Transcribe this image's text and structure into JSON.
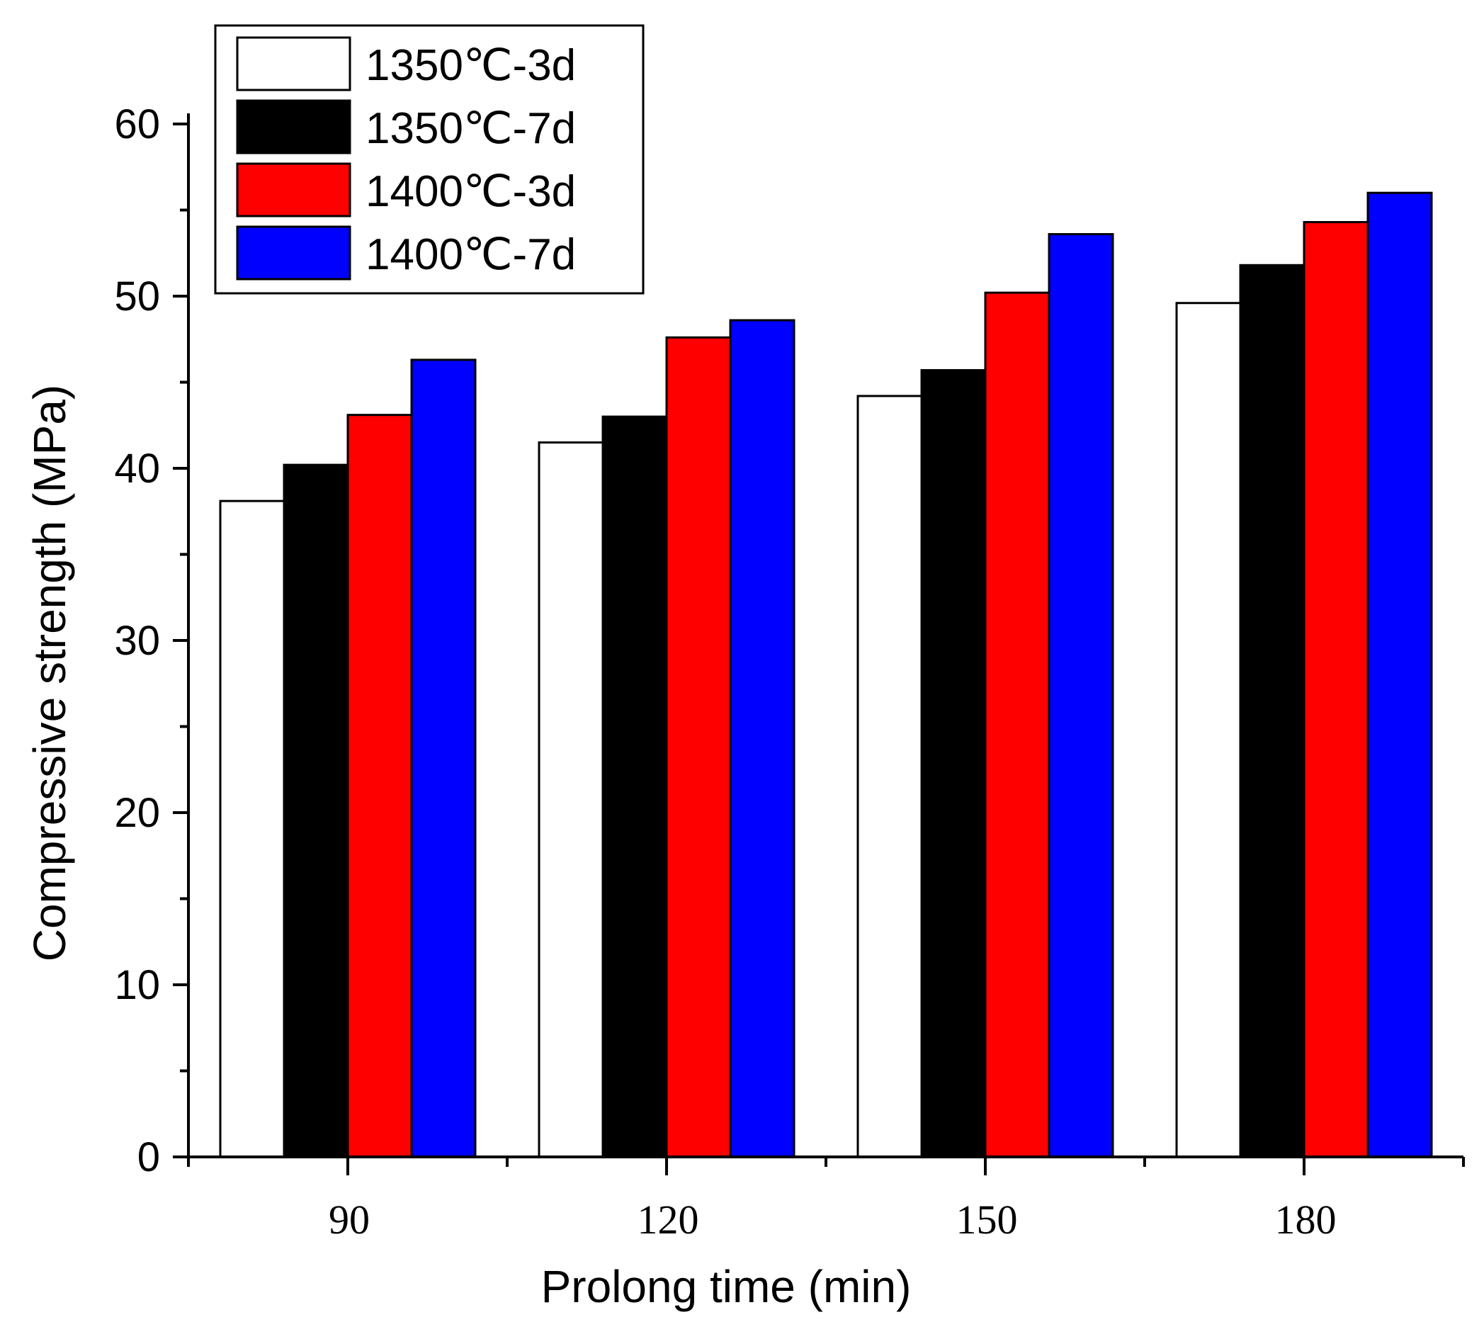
{
  "chart_data": {
    "type": "bar",
    "title": "",
    "xlabel": "Prolong time (min)",
    "ylabel": "Compressive strength (MPa)",
    "categories": [
      "90",
      "120",
      "150",
      "180"
    ],
    "ylim": [
      0,
      60
    ],
    "yticks": [
      "0",
      "10",
      "20",
      "30",
      "40",
      "50",
      "60"
    ],
    "legend_position": "top-left",
    "grid": false,
    "series": [
      {
        "name": "1350℃-3d",
        "color": "#ffffff",
        "values": [
          38.1,
          41.5,
          44.2,
          49.6
        ]
      },
      {
        "name": "1350℃-7d",
        "color": "#000000",
        "values": [
          40.2,
          43.0,
          45.7,
          51.8
        ]
      },
      {
        "name": "1400℃-3d",
        "color": "#ff0000",
        "values": [
          43.1,
          47.6,
          50.2,
          54.3
        ]
      },
      {
        "name": "1400℃-7d",
        "color": "#0000ff",
        "values": [
          46.3,
          48.6,
          53.6,
          56.0
        ]
      }
    ]
  }
}
